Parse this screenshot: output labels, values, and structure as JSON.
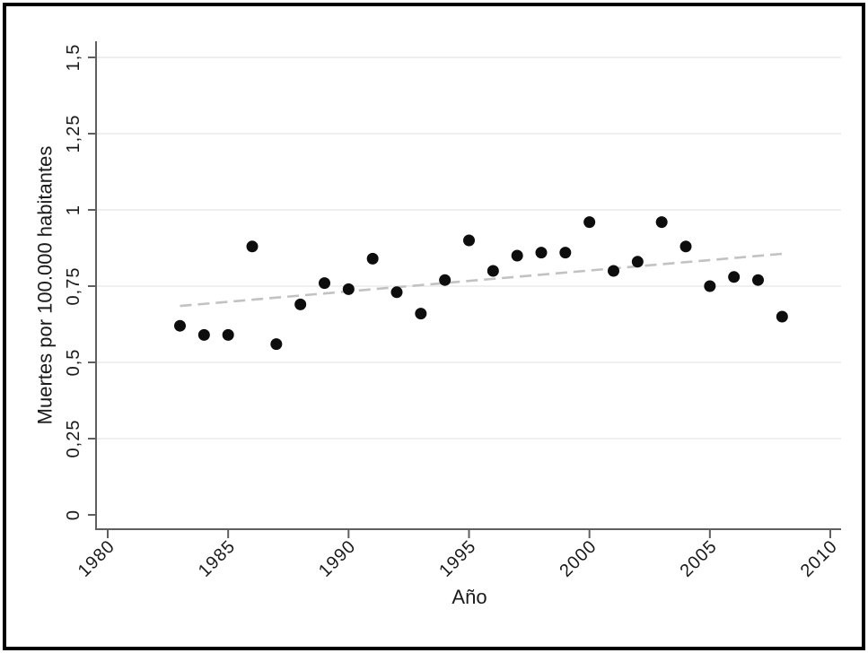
{
  "figure": {
    "border_color": "#000000",
    "background": "#ffffff"
  },
  "chart_data": {
    "type": "scatter",
    "title": "",
    "xlabel": "Año",
    "ylabel": "Muertes por 100.000 habitantes",
    "xlim": [
      1979.5,
      2010.5
    ],
    "ylim": [
      0,
      1.5
    ],
    "grid": true,
    "legend": "none",
    "x_ticks": [
      1980,
      1985,
      1990,
      1995,
      2000,
      2005,
      2010
    ],
    "x_tick_labels": [
      "1980",
      "1985",
      "1990",
      "1995",
      "2000",
      "2005",
      "2010"
    ],
    "y_ticks": [
      0,
      0.25,
      0.5,
      0.75,
      1,
      1.25,
      1.5
    ],
    "y_tick_labels": [
      "0",
      "0,25",
      "0,5",
      "0,75",
      "1",
      "1,25",
      "1,5"
    ],
    "series": [
      {
        "name": "muertes-observadas",
        "type": "scatter",
        "marker": "circle",
        "color": "#0d0d0d",
        "x": [
          1983,
          1984,
          1985,
          1986,
          1987,
          1988,
          1989,
          1990,
          1991,
          1992,
          1993,
          1994,
          1995,
          1996,
          1997,
          1998,
          1999,
          2000,
          2001,
          2002,
          2003,
          2004,
          2005,
          2006,
          2007,
          2008
        ],
        "y": [
          0.62,
          0.59,
          0.59,
          0.88,
          0.56,
          0.69,
          0.76,
          0.74,
          0.84,
          0.73,
          0.66,
          0.77,
          0.9,
          0.8,
          0.85,
          0.86,
          0.86,
          0.96,
          0.8,
          0.83,
          0.96,
          0.88,
          0.75,
          0.78,
          0.77,
          0.65
        ]
      },
      {
        "name": "tendencia-lineal",
        "type": "dashed-line",
        "color": "#c2c2c2",
        "x": [
          1983,
          2008
        ],
        "y": [
          0.685,
          0.856
        ]
      }
    ],
    "colors": {
      "axis": "#5f5f5f",
      "grid": "#eaeaea",
      "text": "#1a1a1a",
      "point": "#0d0d0d",
      "trend": "#c2c2c2"
    }
  }
}
